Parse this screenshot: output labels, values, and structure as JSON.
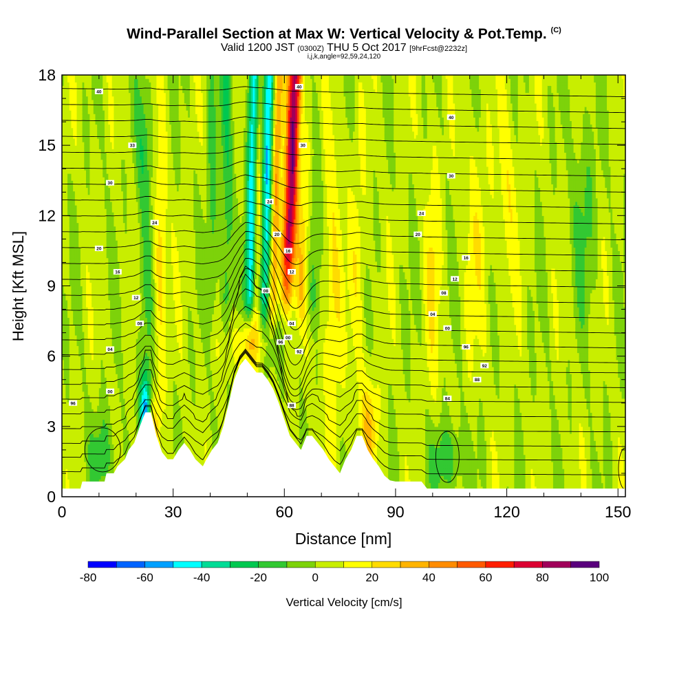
{
  "title": {
    "main": "Wind-Parallel Section at Max W: Vertical Velocity & Pot.Temp.",
    "copyright": "(C)",
    "valid_prefix": "Valid 1200 JST",
    "valid_utc": "(0300Z)",
    "valid_date": "THU 5 Oct 2017",
    "forecast": "[9hrFcst@2232z]",
    "params": "i,j,k,angle=92,59,24,120"
  },
  "chart_data": {
    "type": "heatmap",
    "xlabel": "Distance [nm]",
    "ylabel": "Height [Kft MSL]",
    "xlim": [
      0,
      152
    ],
    "ylim": [
      0,
      18
    ],
    "x_ticks": [
      0,
      30,
      60,
      90,
      120,
      150
    ],
    "y_ticks": [
      0,
      3,
      6,
      9,
      12,
      15,
      18
    ],
    "colorbar": {
      "label": "Vertical Velocity [cm/s]",
      "ticks": [
        -80,
        -60,
        -40,
        -20,
        0,
        20,
        40,
        60,
        80,
        100
      ],
      "bins": [
        {
          "from": -80,
          "to": -70,
          "color": "#0000ff"
        },
        {
          "from": -70,
          "to": -60,
          "color": "#0064ff"
        },
        {
          "from": -60,
          "to": -50,
          "color": "#00a0ff"
        },
        {
          "from": -50,
          "to": -40,
          "color": "#00ffff"
        },
        {
          "from": -40,
          "to": -30,
          "color": "#00dc96"
        },
        {
          "from": -30,
          "to": -20,
          "color": "#00c850"
        },
        {
          "from": -20,
          "to": -10,
          "color": "#32c832"
        },
        {
          "from": -10,
          "to": 0,
          "color": "#7dd20a"
        },
        {
          "from": 0,
          "to": 10,
          "color": "#c8ee00"
        },
        {
          "from": 10,
          "to": 20,
          "color": "#ffff00"
        },
        {
          "from": 20,
          "to": 30,
          "color": "#ffdc00"
        },
        {
          "from": 30,
          "to": 40,
          "color": "#ffb400"
        },
        {
          "from": 40,
          "to": 50,
          "color": "#ff8c00"
        },
        {
          "from": 50,
          "to": 60,
          "color": "#ff5a00"
        },
        {
          "from": 60,
          "to": 70,
          "color": "#ff1e00"
        },
        {
          "from": 70,
          "to": 80,
          "color": "#dc0032"
        },
        {
          "from": 80,
          "to": 90,
          "color": "#a0005a"
        },
        {
          "from": 90,
          "to": 100,
          "color": "#5a007d"
        }
      ]
    },
    "terrain_profile": [
      [
        0,
        0.35
      ],
      [
        5,
        0.35
      ],
      [
        5.5,
        0.65
      ],
      [
        11.5,
        0.65
      ],
      [
        12,
        1.0
      ],
      [
        14,
        1.0
      ],
      [
        15,
        1.3
      ],
      [
        17,
        1.6
      ],
      [
        18,
        2.0
      ],
      [
        19.5,
        2.3
      ],
      [
        21,
        3.0
      ],
      [
        22.5,
        3.6
      ],
      [
        24,
        3.6
      ],
      [
        25.5,
        2.6
      ],
      [
        27,
        1.9
      ],
      [
        28.5,
        1.6
      ],
      [
        30,
        1.6
      ],
      [
        31.5,
        2.0
      ],
      [
        33,
        2.3
      ],
      [
        34.5,
        2.0
      ],
      [
        36,
        1.6
      ],
      [
        38,
        1.3
      ],
      [
        39,
        1.6
      ],
      [
        40.5,
        2.0
      ],
      [
        42,
        2.3
      ],
      [
        43.5,
        3.0
      ],
      [
        45,
        4.0
      ],
      [
        46.5,
        5.0
      ],
      [
        48,
        5.6
      ],
      [
        49.5,
        5.9
      ],
      [
        51,
        5.6
      ],
      [
        52.5,
        5.3
      ],
      [
        54,
        5.3
      ],
      [
        55.5,
        5.0
      ],
      [
        57,
        4.6
      ],
      [
        58.5,
        4.0
      ],
      [
        60,
        3.3
      ],
      [
        61.5,
        2.6
      ],
      [
        63,
        2.3
      ],
      [
        64.5,
        2.0
      ],
      [
        66,
        2.6
      ],
      [
        67.5,
        2.6
      ],
      [
        69,
        2.3
      ],
      [
        70.5,
        2.0
      ],
      [
        72,
        1.6
      ],
      [
        73.5,
        1.3
      ],
      [
        75,
        1.0
      ],
      [
        76.5,
        1.6
      ],
      [
        78,
        2.0
      ],
      [
        79.5,
        2.6
      ],
      [
        81,
        2.6
      ],
      [
        82.5,
        2.0
      ],
      [
        84,
        1.6
      ],
      [
        85.5,
        1.3
      ],
      [
        87,
        0.9
      ],
      [
        88.5,
        0.7
      ],
      [
        90,
        0.65
      ],
      [
        97,
        0.65
      ],
      [
        98.5,
        0.35
      ],
      [
        152,
        0.35
      ]
    ],
    "theta_contour_labels": [
      {
        "x": 10,
        "y": 17.3,
        "label": "40"
      },
      {
        "x": 19,
        "y": 15.0,
        "label": "33"
      },
      {
        "x": 13,
        "y": 13.4,
        "label": "30"
      },
      {
        "x": 25,
        "y": 11.7,
        "label": "24"
      },
      {
        "x": 10,
        "y": 10.6,
        "label": "20"
      },
      {
        "x": 15,
        "y": 9.6,
        "label": "16"
      },
      {
        "x": 20,
        "y": 8.5,
        "label": "12"
      },
      {
        "x": 21,
        "y": 7.4,
        "label": "08"
      },
      {
        "x": 13,
        "y": 6.3,
        "label": "04"
      },
      {
        "x": 13,
        "y": 4.5,
        "label": "00"
      },
      {
        "x": 3,
        "y": 4.0,
        "label": "96"
      },
      {
        "x": 64,
        "y": 17.5,
        "label": "40"
      },
      {
        "x": 65,
        "y": 15.0,
        "label": "30"
      },
      {
        "x": 56,
        "y": 12.6,
        "label": "24"
      },
      {
        "x": 58,
        "y": 11.2,
        "label": "20"
      },
      {
        "x": 61,
        "y": 10.5,
        "label": "16"
      },
      {
        "x": 62,
        "y": 9.6,
        "label": "12"
      },
      {
        "x": 55,
        "y": 8.8,
        "label": "08"
      },
      {
        "x": 62,
        "y": 7.4,
        "label": "04"
      },
      {
        "x": 61,
        "y": 6.8,
        "label": "00"
      },
      {
        "x": 59,
        "y": 6.6,
        "label": "96"
      },
      {
        "x": 64,
        "y": 6.2,
        "label": "92"
      },
      {
        "x": 62,
        "y": 3.9,
        "label": "88"
      },
      {
        "x": 105,
        "y": 16.2,
        "label": "40"
      },
      {
        "x": 105,
        "y": 13.7,
        "label": "30"
      },
      {
        "x": 97,
        "y": 12.1,
        "label": "24"
      },
      {
        "x": 96,
        "y": 11.2,
        "label": "20"
      },
      {
        "x": 109,
        "y": 10.2,
        "label": "16"
      },
      {
        "x": 106,
        "y": 9.3,
        "label": "12"
      },
      {
        "x": 103,
        "y": 8.7,
        "label": "08"
      },
      {
        "x": 100,
        "y": 7.8,
        "label": "04"
      },
      {
        "x": 104,
        "y": 7.2,
        "label": "00"
      },
      {
        "x": 109,
        "y": 6.4,
        "label": "96"
      },
      {
        "x": 114,
        "y": 5.6,
        "label": "92"
      },
      {
        "x": 112,
        "y": 5.0,
        "label": "88"
      },
      {
        "x": 104,
        "y": 4.2,
        "label": "84"
      }
    ]
  }
}
